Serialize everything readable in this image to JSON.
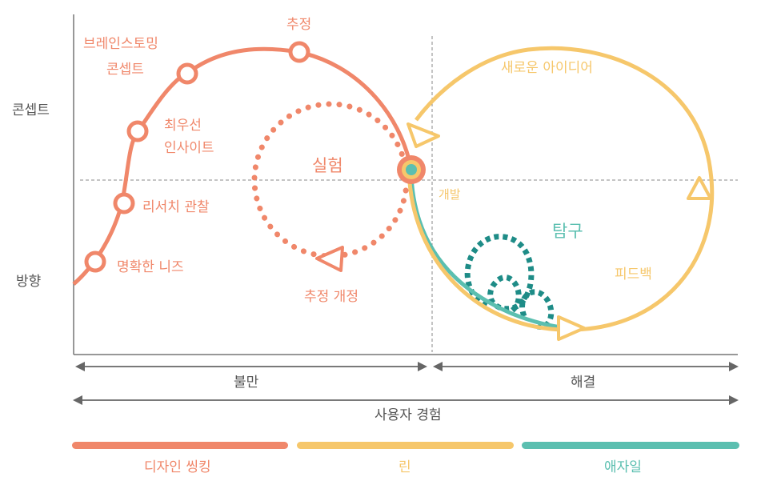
{
  "colors": {
    "design_thinking": "#F0876A",
    "lean": "#F6C76B",
    "agile": "#5BBFB0",
    "agile_dark": "#1E8C87",
    "axis": "#666666",
    "text_dark": "#555555"
  },
  "y_axis": {
    "top_label": "콘셉트",
    "bottom_label": "방향"
  },
  "design_thinking_curve": {
    "steps": [
      "명확한 니즈",
      "리서치 관찰",
      "최우선",
      "인사이트",
      "브레인스토밍",
      "콘셉트",
      "추정"
    ],
    "experiment_loop": {
      "label": "실험",
      "revision_label": "추정 개정"
    }
  },
  "lean_loop": {
    "new_idea": "새로운 아이디어",
    "develop": "개발",
    "feedback": "피드백"
  },
  "agile_loop": {
    "label": "탐구"
  },
  "ranges": {
    "uncertainty": "불만",
    "solution": "해결",
    "user_experience": "사용자 경험"
  },
  "legend": [
    {
      "label": "디자인 씽킹",
      "color": "#F0876A"
    },
    {
      "label": "린",
      "color": "#F6C76B"
    },
    {
      "label": "애자일",
      "color": "#5BBFB0"
    }
  ]
}
